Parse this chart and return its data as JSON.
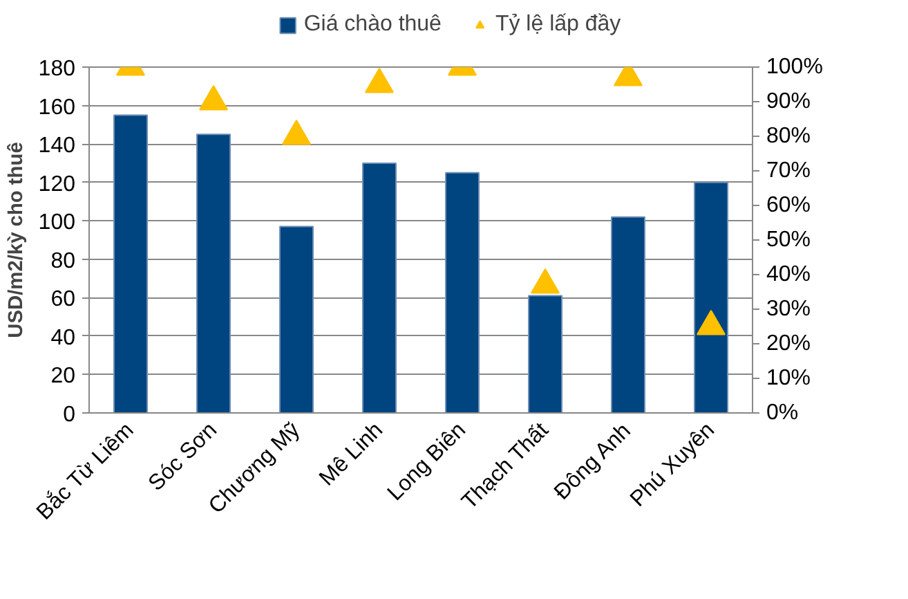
{
  "chart_data": {
    "type": "bar",
    "ylabel": "USD/m2/kỳ cho thuê",
    "categories": [
      "Bắc Từ Liêm",
      "Sóc Sơn",
      "Chương Mỹ",
      "Mê Linh",
      "Long Biên",
      "Thạch Thất",
      "Đông Anh",
      "Phú Xuyên"
    ],
    "series": [
      {
        "name": "Giá chào thuê",
        "color": "#004480",
        "values": [
          155,
          145,
          97,
          130,
          125,
          61,
          102,
          120
        ]
      },
      {
        "name": "Tỷ lệ lấp đầy",
        "type": "scatter",
        "axis": "y2",
        "marker": "triangle",
        "color": "#ffc000",
        "values": [
          100,
          90,
          80,
          95,
          100,
          37,
          97,
          25
        ]
      }
    ],
    "ylim": [
      0,
      180
    ],
    "yticks": [
      0,
      20,
      40,
      60,
      80,
      100,
      120,
      140,
      160,
      180
    ],
    "y2lim": [
      0,
      100
    ],
    "y2ticks": [
      {
        "value": 0,
        "label": "0%"
      },
      {
        "value": 10,
        "label": "10%"
      },
      {
        "value": 20,
        "label": "20%"
      },
      {
        "value": 30,
        "label": "30%"
      },
      {
        "value": 40,
        "label": "40%"
      },
      {
        "value": 50,
        "label": "50%"
      },
      {
        "value": 60,
        "label": "60%"
      },
      {
        "value": 70,
        "label": "70%"
      },
      {
        "value": 80,
        "label": "80%"
      },
      {
        "value": 90,
        "label": "90%"
      },
      {
        "value": 100,
        "label": "100%"
      }
    ],
    "grid": "y",
    "legend": "top"
  }
}
